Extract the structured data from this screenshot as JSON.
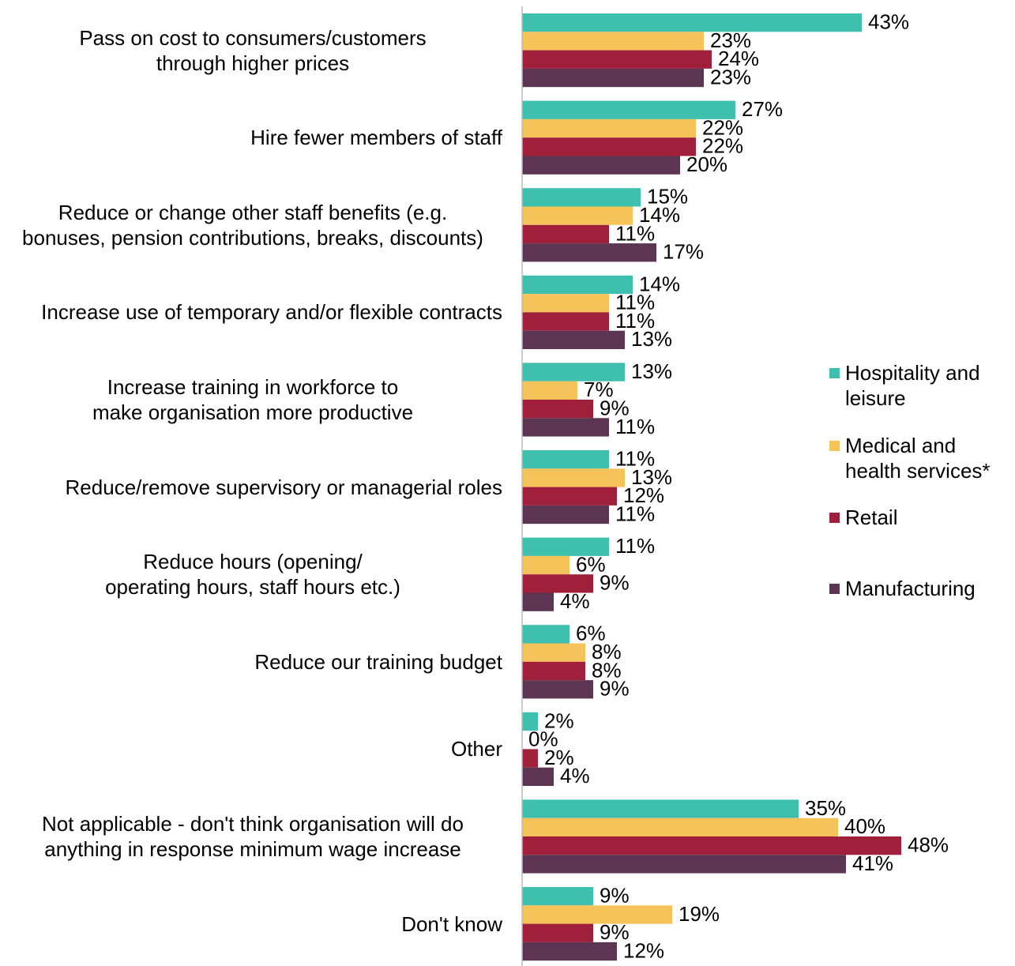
{
  "chart_data": {
    "type": "hbar",
    "categories": [
      "Pass on cost to consumers/customers through higher prices",
      "Hire fewer members of staff",
      "Reduce or change other staff benefits (e.g. bonuses, pension contributions, breaks, discounts)",
      "Increase use of temporary and/or flexible contracts",
      "Increase training in workforce to make organisation more productive",
      "Reduce/remove supervisory or managerial roles",
      "Reduce hours (opening/ operating hours, staff hours etc.)",
      "Reduce our training budget",
      "Other",
      "Not applicable - don't think organisation will do anything in response minimum wage increase",
      "Don't know"
    ],
    "series": [
      {
        "name": "Hospitality and leisure",
        "color": "#3fbfad",
        "values": [
          43,
          27,
          15,
          14,
          13,
          11,
          11,
          6,
          2,
          35,
          9
        ],
        "value_labels": [
          "43%",
          "27%",
          "15%",
          "14%",
          "13%",
          "11%",
          "11%",
          "6%",
          "2%",
          "35%",
          "9%"
        ]
      },
      {
        "name": "Medical and health services*",
        "color": "#f6c35a",
        "values": [
          23,
          22,
          14,
          11,
          7,
          13,
          6,
          8,
          0,
          40,
          19
        ],
        "value_labels": [
          "23%",
          "22%",
          "14%",
          "11%",
          "7%",
          "13%",
          "6%",
          "8%",
          "0%",
          "40%",
          "19%"
        ]
      },
      {
        "name": "Retail",
        "color": "#a0203c",
        "values": [
          24,
          22,
          11,
          11,
          9,
          12,
          9,
          8,
          2,
          48,
          9
        ],
        "value_labels": [
          "24%",
          "22%",
          "11%",
          "11%",
          "9%",
          "12%",
          "9%",
          "8%",
          "2%",
          "48%",
          "9%"
        ]
      },
      {
        "name": "Manufacturing",
        "color": "#5c3553",
        "values": [
          23,
          20,
          17,
          13,
          11,
          11,
          4,
          9,
          4,
          41,
          12
        ],
        "value_labels": [
          "23%",
          "20%",
          "17%",
          "13%",
          "11%",
          "11%",
          "4%",
          "9%",
          "4%",
          "41%",
          "12%"
        ]
      }
    ],
    "xlim": [
      0,
      60
    ],
    "legend": "right"
  }
}
